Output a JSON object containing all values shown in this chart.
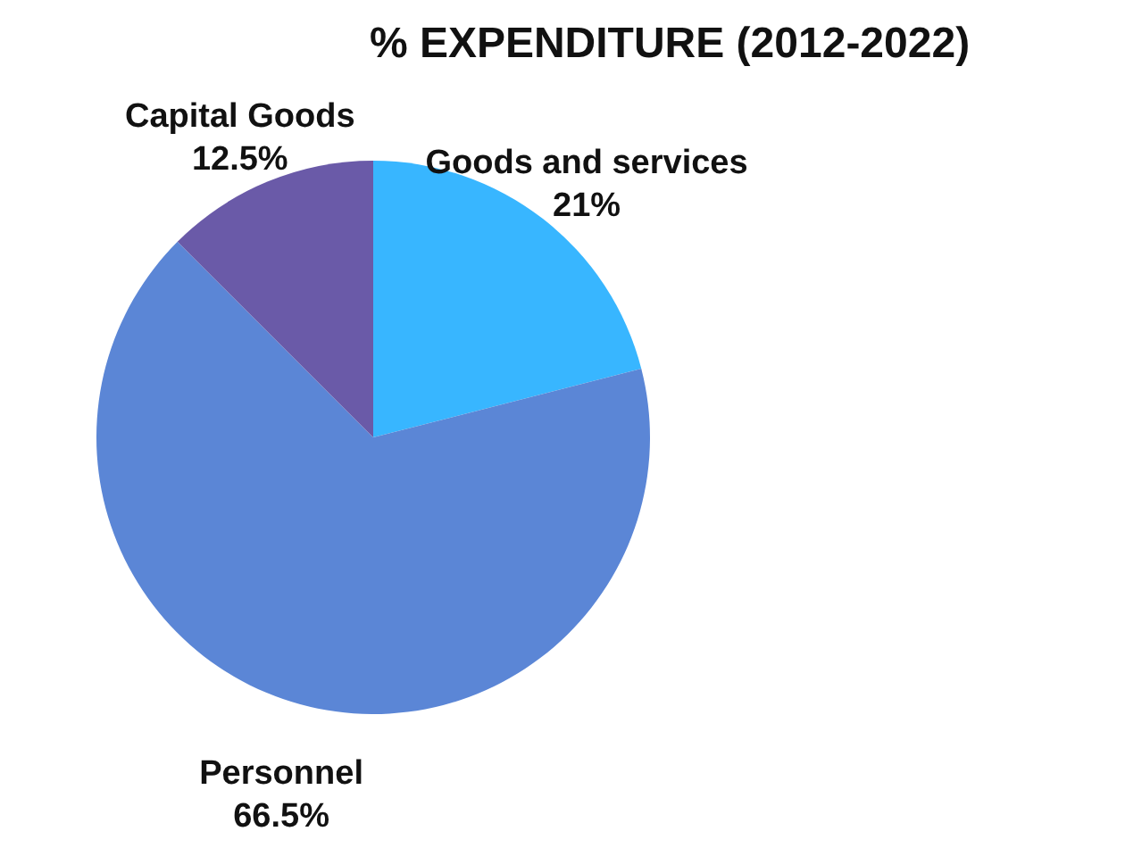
{
  "chart_data": {
    "type": "pie",
    "title": "% EXPENDITURE (2012-2022)",
    "categories": [
      "Goods and services",
      "Personnel",
      "Capital Goods"
    ],
    "values": [
      21,
      66.5,
      12.5
    ],
    "colors": [
      "#38b6ff",
      "#5b86d6",
      "#6a5aa8"
    ],
    "value_labels": [
      "21%",
      "66.5%",
      "12.5%"
    ],
    "legend": false
  }
}
